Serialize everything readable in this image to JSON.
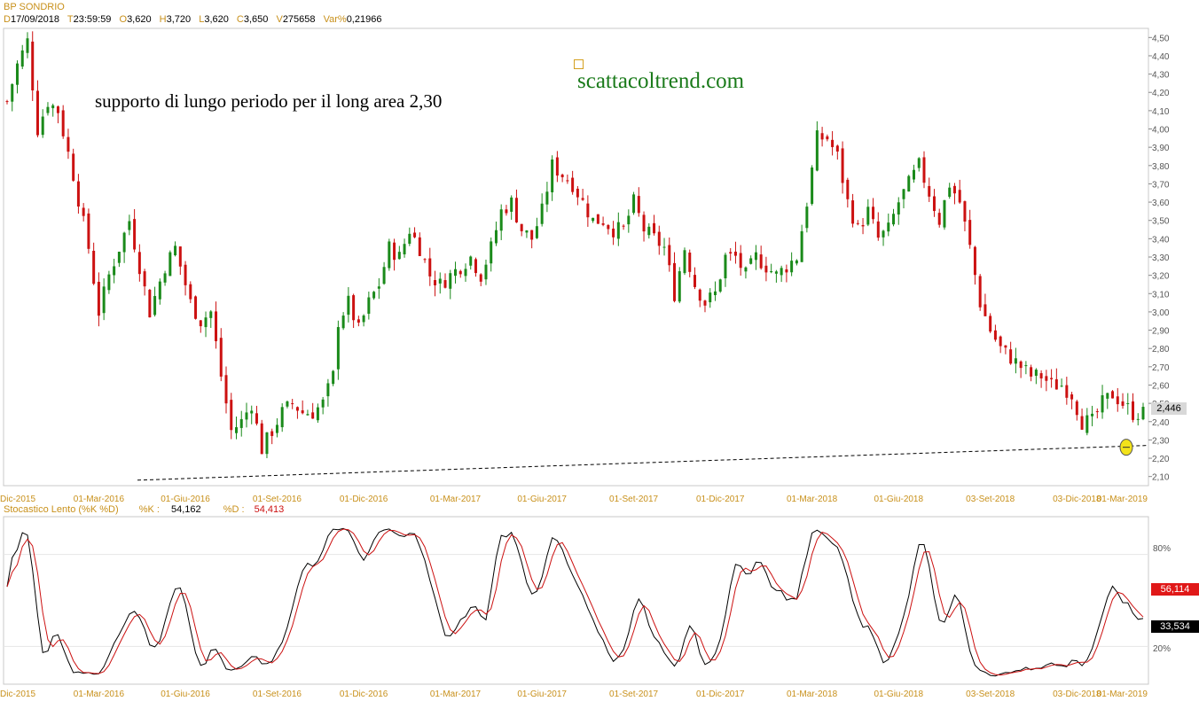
{
  "instrument": "BP SONDRIO",
  "ohlc": {
    "d_label": "D",
    "date": "17/09/2018",
    "t_label": "T",
    "time": "23:59:59",
    "o_label": "O",
    "open": "3,620",
    "h_label": "H",
    "high": "3,720",
    "l_label": "L",
    "low": "3,620",
    "c_label": "C",
    "close": "3,650",
    "v_label": "V",
    "volume": "275658",
    "var_label": "Var%",
    "var": "0,21966"
  },
  "annotation_text": "supporto di lungo periodo per il long area 2,30",
  "watermark": "scattacoltrend.com",
  "colors": {
    "up": "#1a8a1a",
    "down": "#cc1111",
    "accent": "#c8901a",
    "watermark": "#1a7a1a",
    "k_line": "#000000",
    "d_line": "#cc1111"
  },
  "stochastic": {
    "label": "Stocastico Lento (%K %D)",
    "k_label": "%K :",
    "k_value": "54,162",
    "d_label": "%D :",
    "d_value": "54,413",
    "badge_top": "56,114",
    "badge_bottom": "33,534",
    "level_high": "80%",
    "level_low": "20%"
  },
  "chart_data": [
    {
      "type": "candlestick",
      "title": "BP SONDRIO",
      "x_ticks": [
        "Dic-2015",
        "01-Mar-2016",
        "01-Giu-2016",
        "01-Set-2016",
        "01-Dic-2016",
        "01-Mar-2017",
        "01-Giu-2017",
        "01-Set-2017",
        "01-Dic-2017",
        "01-Mar-2018",
        "01-Giu-2018",
        "03-Set-2018",
        "03-Dic-2018",
        "01-Mar-2019"
      ],
      "y_ticks": [
        "2,10",
        "2,20",
        "2,30",
        "2,40",
        "2,50",
        "2,60",
        "2,70",
        "2,80",
        "2,90",
        "3,00",
        "3,10",
        "3,20",
        "3,30",
        "3,40",
        "3,50",
        "3,60",
        "3,70",
        "3,80",
        "3,90",
        "4,00",
        "4,10",
        "4,20",
        "4,30",
        "4,40",
        "4,50"
      ],
      "ylim": [
        2.05,
        4.55
      ],
      "last_price": "2,446",
      "last_price_value": 2.446,
      "price_path": [
        [
          0,
          4.15
        ],
        [
          2,
          4.35
        ],
        [
          4,
          4.48
        ],
        [
          6,
          4.0
        ],
        [
          8,
          4.15
        ],
        [
          10,
          4.1
        ],
        [
          13,
          3.75
        ],
        [
          16,
          3.35
        ],
        [
          18,
          3.0
        ],
        [
          20,
          3.2
        ],
        [
          22,
          3.35
        ],
        [
          24,
          3.5
        ],
        [
          26,
          3.25
        ],
        [
          28,
          3.0
        ],
        [
          31,
          3.25
        ],
        [
          33,
          3.35
        ],
        [
          36,
          3.05
        ],
        [
          38,
          2.95
        ],
        [
          40,
          3.0
        ],
        [
          42,
          2.65
        ],
        [
          44,
          2.35
        ],
        [
          46,
          2.4
        ],
        [
          48,
          2.5
        ],
        [
          50,
          2.25
        ],
        [
          52,
          2.35
        ],
        [
          54,
          2.45
        ],
        [
          56,
          2.5
        ],
        [
          58,
          2.45
        ],
        [
          60,
          2.45
        ],
        [
          62,
          2.5
        ],
        [
          64,
          2.65
        ],
        [
          65,
          2.95
        ],
        [
          67,
          3.05
        ],
        [
          69,
          2.9
        ],
        [
          71,
          3.05
        ],
        [
          73,
          3.15
        ],
        [
          75,
          3.35
        ],
        [
          77,
          3.3
        ],
        [
          79,
          3.45
        ],
        [
          81,
          3.35
        ],
        [
          83,
          3.2
        ],
        [
          85,
          3.15
        ],
        [
          87,
          3.2
        ],
        [
          89,
          3.25
        ],
        [
          91,
          3.3
        ],
        [
          93,
          3.2
        ],
        [
          95,
          3.35
        ],
        [
          97,
          3.55
        ],
        [
          99,
          3.6
        ],
        [
          101,
          3.45
        ],
        [
          103,
          3.4
        ],
        [
          105,
          3.55
        ],
        [
          107,
          3.8
        ],
        [
          109,
          3.75
        ],
        [
          111,
          3.7
        ],
        [
          113,
          3.6
        ],
        [
          115,
          3.5
        ],
        [
          117,
          3.5
        ],
        [
          119,
          3.45
        ],
        [
          121,
          3.45
        ],
        [
          123,
          3.6
        ],
        [
          125,
          3.45
        ],
        [
          127,
          3.4
        ],
        [
          129,
          3.35
        ],
        [
          131,
          3.1
        ],
        [
          133,
          3.35
        ],
        [
          135,
          3.15
        ],
        [
          137,
          3.05
        ],
        [
          139,
          3.1
        ],
        [
          141,
          3.3
        ],
        [
          143,
          3.3
        ],
        [
          145,
          3.2
        ],
        [
          147,
          3.3
        ],
        [
          149,
          3.25
        ],
        [
          151,
          3.2
        ],
        [
          153,
          3.25
        ],
        [
          155,
          3.3
        ],
        [
          157,
          3.6
        ],
        [
          159,
          3.95
        ],
        [
          161,
          3.95
        ],
        [
          163,
          3.85
        ],
        [
          165,
          3.6
        ],
        [
          167,
          3.45
        ],
        [
          169,
          3.55
        ],
        [
          171,
          3.4
        ],
        [
          173,
          3.45
        ],
        [
          175,
          3.6
        ],
        [
          177,
          3.7
        ],
        [
          179,
          3.8
        ],
        [
          181,
          3.65
        ],
        [
          183,
          3.5
        ],
        [
          185,
          3.7
        ],
        [
          187,
          3.6
        ],
        [
          189,
          3.35
        ],
        [
          191,
          3.05
        ],
        [
          193,
          2.9
        ],
        [
          195,
          2.8
        ],
        [
          197,
          2.75
        ],
        [
          199,
          2.7
        ],
        [
          201,
          2.65
        ],
        [
          203,
          2.65
        ],
        [
          205,
          2.6
        ],
        [
          207,
          2.6
        ],
        [
          209,
          2.55
        ],
        [
          211,
          2.4
        ],
        [
          213,
          2.4
        ],
        [
          215,
          2.5
        ],
        [
          217,
          2.55
        ],
        [
          219,
          2.5
        ],
        [
          221,
          2.446
        ]
      ],
      "support_line": {
        "label": "supporto di lungo periodo",
        "from": [
          25,
          2.08
        ],
        "to": [
          223,
          2.26
        ]
      },
      "marker_value": 2.26
    },
    {
      "type": "line",
      "title": "Stocastico Lento (%K %D)",
      "series": [
        {
          "name": "%K",
          "last": 54.162
        },
        {
          "name": "%D",
          "last": 54.413
        }
      ],
      "ylim": [
        0,
        100
      ],
      "levels": [
        80,
        20
      ],
      "x_ticks": [
        "Dic-2015",
        "01-Mar-2016",
        "01-Giu-2016",
        "01-Set-2016",
        "01-Dic-2016",
        "01-Mar-2017",
        "01-Giu-2017",
        "01-Set-2017",
        "01-Dic-2017",
        "01-Mar-2018",
        "01-Giu-2018",
        "03-Set-2018",
        "03-Dic-2018",
        "01-Mar-2019"
      ]
    }
  ]
}
